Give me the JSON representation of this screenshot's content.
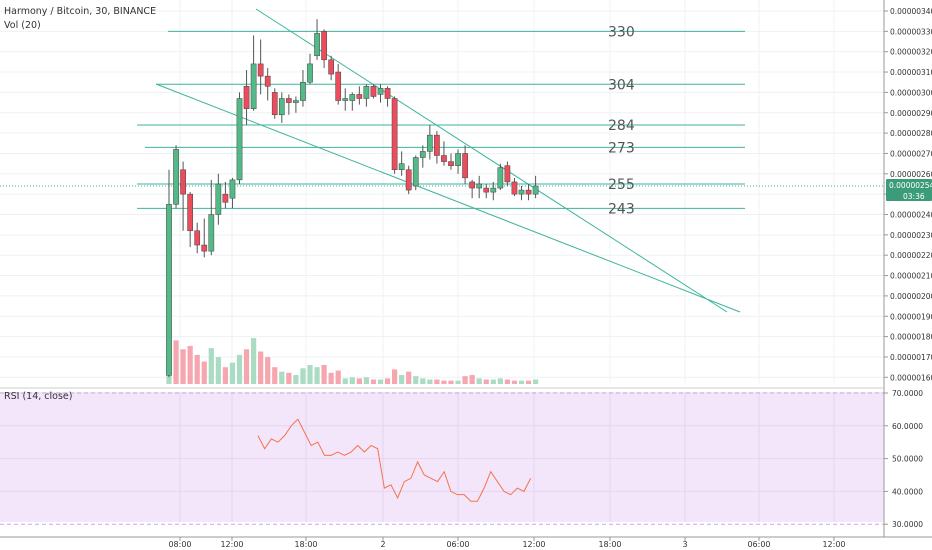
{
  "header": {
    "symbol_title": "Harmony / Bitcoin, 30, BINANCE",
    "volume_label": "Vol (20)"
  },
  "rsi_panel": {
    "label": "RSI (14, close)"
  },
  "price_badge": {
    "price": "0.00000254",
    "countdown": "03:36"
  },
  "colors": {
    "up": "#53b987",
    "down": "#eb4d5c",
    "vol_up": "#a9dcc3",
    "vol_down": "#f5a6ae",
    "levels": "#3cb39c",
    "rsi_line": "#f5744b",
    "rsi_band": "#f3e6fb",
    "badge": "#3c9c79"
  },
  "chart_data": [
    {
      "type": "candlestick",
      "title": "Harmony / Bitcoin, 30, BINANCE",
      "y_axis": {
        "ticks": [
          "0.00000160",
          "0.00000170",
          "0.00000180",
          "0.00000190",
          "0.00000200",
          "0.00000210",
          "0.00000220",
          "0.00000230",
          "0.00000240",
          "0.00000250",
          "0.00000260",
          "0.00000270",
          "0.00000280",
          "0.00000290",
          "0.00000300",
          "0.00000310",
          "0.00000320",
          "0.00000330",
          "0.00000340"
        ],
        "unit": "BTC"
      },
      "x_axis": {
        "ticks": [
          "08:00",
          "12:00",
          "18:00",
          "2",
          "06:00",
          "12:00",
          "18:00",
          "3",
          "06:00",
          "12:00"
        ]
      },
      "candles": [
        {
          "o": 161,
          "h": 262,
          "l": 160,
          "c": 245
        },
        {
          "o": 245,
          "h": 274,
          "l": 243,
          "c": 272
        },
        {
          "o": 262,
          "h": 266,
          "l": 232,
          "c": 250
        },
        {
          "o": 250,
          "h": 251,
          "l": 224,
          "c": 232
        },
        {
          "o": 232,
          "h": 236,
          "l": 221,
          "c": 225
        },
        {
          "o": 225,
          "h": 238,
          "l": 219,
          "c": 222
        },
        {
          "o": 222,
          "h": 257,
          "l": 220,
          "c": 240
        },
        {
          "o": 240,
          "h": 260,
          "l": 235,
          "c": 255
        },
        {
          "o": 250,
          "h": 256,
          "l": 243,
          "c": 246
        },
        {
          "o": 248,
          "h": 258,
          "l": 243,
          "c": 257
        },
        {
          "o": 257,
          "h": 300,
          "l": 255,
          "c": 297
        },
        {
          "o": 303,
          "h": 311,
          "l": 284,
          "c": 292
        },
        {
          "o": 292,
          "h": 328,
          "l": 291,
          "c": 314
        },
        {
          "o": 314,
          "h": 326,
          "l": 299,
          "c": 308
        },
        {
          "o": 308,
          "h": 312,
          "l": 296,
          "c": 303
        },
        {
          "o": 300,
          "h": 302,
          "l": 287,
          "c": 289
        },
        {
          "o": 289,
          "h": 300,
          "l": 285,
          "c": 297
        },
        {
          "o": 297,
          "h": 299,
          "l": 289,
          "c": 295
        },
        {
          "o": 295,
          "h": 298,
          "l": 290,
          "c": 296
        },
        {
          "o": 296,
          "h": 311,
          "l": 293,
          "c": 305
        },
        {
          "o": 305,
          "h": 319,
          "l": 304,
          "c": 314
        },
        {
          "o": 318,
          "h": 336,
          "l": 316,
          "c": 329
        },
        {
          "o": 330,
          "h": 331,
          "l": 312,
          "c": 316
        },
        {
          "o": 316,
          "h": 318,
          "l": 306,
          "c": 309
        },
        {
          "o": 310,
          "h": 314,
          "l": 294,
          "c": 296
        },
        {
          "o": 296,
          "h": 302,
          "l": 291,
          "c": 297
        },
        {
          "o": 296,
          "h": 300,
          "l": 291,
          "c": 299
        },
        {
          "o": 299,
          "h": 303,
          "l": 294,
          "c": 297
        },
        {
          "o": 297,
          "h": 304,
          "l": 293,
          "c": 303
        },
        {
          "o": 303,
          "h": 304,
          "l": 297,
          "c": 298
        },
        {
          "o": 299,
          "h": 304,
          "l": 295,
          "c": 302
        },
        {
          "o": 302,
          "h": 303,
          "l": 293,
          "c": 297
        },
        {
          "o": 297,
          "h": 298,
          "l": 260,
          "c": 262
        },
        {
          "o": 262,
          "h": 271,
          "l": 259,
          "c": 265
        },
        {
          "o": 262,
          "h": 264,
          "l": 250,
          "c": 252
        },
        {
          "o": 254,
          "h": 269,
          "l": 252,
          "c": 268
        },
        {
          "o": 268,
          "h": 274,
          "l": 263,
          "c": 271
        },
        {
          "o": 271,
          "h": 284,
          "l": 267,
          "c": 279
        },
        {
          "o": 279,
          "h": 281,
          "l": 265,
          "c": 269
        },
        {
          "o": 269,
          "h": 276,
          "l": 264,
          "c": 266
        },
        {
          "o": 266,
          "h": 270,
          "l": 262,
          "c": 264
        },
        {
          "o": 264,
          "h": 272,
          "l": 260,
          "c": 270
        },
        {
          "o": 270,
          "h": 274,
          "l": 255,
          "c": 258
        },
        {
          "o": 256,
          "h": 257,
          "l": 248,
          "c": 253
        },
        {
          "o": 253,
          "h": 259,
          "l": 248,
          "c": 255
        },
        {
          "o": 253,
          "h": 255,
          "l": 248,
          "c": 251
        },
        {
          "o": 251,
          "h": 256,
          "l": 247,
          "c": 253
        },
        {
          "o": 253,
          "h": 265,
          "l": 252,
          "c": 263
        },
        {
          "o": 264,
          "h": 266,
          "l": 254,
          "c": 256
        },
        {
          "o": 256,
          "h": 258,
          "l": 249,
          "c": 250
        },
        {
          "o": 250,
          "h": 254,
          "l": 247,
          "c": 252
        },
        {
          "o": 252,
          "h": 255,
          "l": 247,
          "c": 250
        },
        {
          "o": 250,
          "h": 259,
          "l": 248,
          "c": 254
        }
      ],
      "volume": [
        {
          "v": 100,
          "up": true
        },
        {
          "v": 78,
          "up": false
        },
        {
          "v": 62,
          "up": false
        },
        {
          "v": 68,
          "up": false
        },
        {
          "v": 52,
          "up": false
        },
        {
          "v": 40,
          "up": false
        },
        {
          "v": 64,
          "up": true
        },
        {
          "v": 48,
          "up": true
        },
        {
          "v": 30,
          "up": false
        },
        {
          "v": 38,
          "up": true
        },
        {
          "v": 52,
          "up": true
        },
        {
          "v": 62,
          "up": false
        },
        {
          "v": 82,
          "up": true
        },
        {
          "v": 58,
          "up": false
        },
        {
          "v": 48,
          "up": false
        },
        {
          "v": 30,
          "up": false
        },
        {
          "v": 22,
          "up": true
        },
        {
          "v": 20,
          "up": false
        },
        {
          "v": 16,
          "up": true
        },
        {
          "v": 28,
          "up": true
        },
        {
          "v": 34,
          "up": true
        },
        {
          "v": 30,
          "up": true
        },
        {
          "v": 34,
          "up": false
        },
        {
          "v": 20,
          "up": false
        },
        {
          "v": 24,
          "up": false
        },
        {
          "v": 10,
          "up": true
        },
        {
          "v": 12,
          "up": true
        },
        {
          "v": 10,
          "up": false
        },
        {
          "v": 12,
          "up": true
        },
        {
          "v": 8,
          "up": false
        },
        {
          "v": 8,
          "up": true
        },
        {
          "v": 10,
          "up": false
        },
        {
          "v": 26,
          "up": false
        },
        {
          "v": 16,
          "up": true
        },
        {
          "v": 22,
          "up": false
        },
        {
          "v": 14,
          "up": true
        },
        {
          "v": 10,
          "up": true
        },
        {
          "v": 8,
          "up": true
        },
        {
          "v": 8,
          "up": false
        },
        {
          "v": 6,
          "up": false
        },
        {
          "v": 6,
          "up": false
        },
        {
          "v": 6,
          "up": true
        },
        {
          "v": 14,
          "up": false
        },
        {
          "v": 16,
          "up": false
        },
        {
          "v": 10,
          "up": true
        },
        {
          "v": 8,
          "up": false
        },
        {
          "v": 8,
          "up": true
        },
        {
          "v": 10,
          "up": true
        },
        {
          "v": 8,
          "up": false
        },
        {
          "v": 6,
          "up": false
        },
        {
          "v": 6,
          "up": true
        },
        {
          "v": 6,
          "up": false
        },
        {
          "v": 8,
          "up": true
        }
      ],
      "levels": [
        {
          "label": "330",
          "value": 330
        },
        {
          "label": "304",
          "value": 304
        },
        {
          "label": "284",
          "value": 284
        },
        {
          "label": "273",
          "value": 273
        },
        {
          "label": "255",
          "value": 255
        },
        {
          "label": "243",
          "value": 243
        }
      ],
      "current_price_line": 254
    },
    {
      "type": "line",
      "title": "RSI (14, close)",
      "y_axis": {
        "ticks": [
          "30.0000",
          "40.0000",
          "50.0000",
          "60.0000",
          "70.0000"
        ]
      },
      "band": [
        30,
        70
      ],
      "values": [
        57,
        53,
        56,
        55,
        57,
        60,
        62,
        58,
        54,
        55,
        51,
        51,
        52,
        51,
        52,
        54,
        52,
        54,
        53,
        41,
        42,
        38,
        43,
        44,
        49,
        45,
        44,
        43,
        46,
        40,
        39,
        39,
        37,
        37,
        41,
        46,
        43,
        40,
        39,
        41,
        40,
        44
      ]
    }
  ]
}
